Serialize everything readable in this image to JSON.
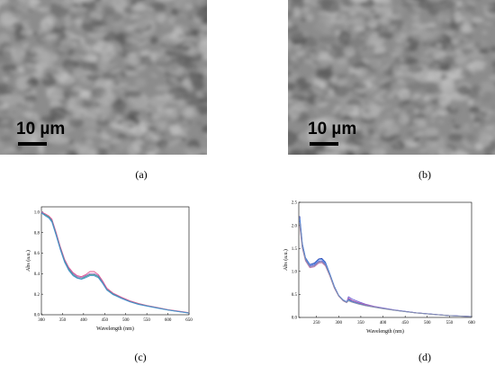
{
  "panels": {
    "a": {
      "caption": "(a)",
      "scale_bar": "10 µm"
    },
    "b": {
      "caption": "(b)",
      "scale_bar": "10 µm"
    },
    "c": {
      "caption": "(c)"
    },
    "d": {
      "caption": "(d)"
    }
  },
  "chart_data": [
    {
      "type": "line",
      "panel": "c",
      "xlabel": "Wavelength (nm)",
      "ylabel": "Abs (a.u.)",
      "xlim": [
        300,
        650
      ],
      "ylim": [
        0.0,
        1.05
      ],
      "xticks": [
        300,
        350,
        400,
        450,
        500,
        550,
        600,
        650
      ],
      "yticks": [
        0.0,
        0.2,
        0.4,
        0.6,
        0.8,
        1.0
      ],
      "xtick_labels": [
        "300",
        "350",
        "400",
        "450",
        "500",
        "550",
        "600",
        "650"
      ],
      "ytick_labels": [
        "0.0",
        "0.2",
        "0.4",
        "0.6",
        "0.8",
        "1.0"
      ],
      "x": [
        300,
        310,
        318,
        325,
        335,
        345,
        355,
        365,
        375,
        385,
        395,
        405,
        415,
        425,
        435,
        445,
        455,
        470,
        490,
        510,
        530,
        550,
        575,
        600,
        625,
        650
      ],
      "series": [
        {
          "color": "#e0508c",
          "values": [
            1.0,
            0.98,
            0.96,
            0.93,
            0.8,
            0.66,
            0.54,
            0.46,
            0.41,
            0.38,
            0.37,
            0.39,
            0.42,
            0.42,
            0.39,
            0.33,
            0.26,
            0.21,
            0.17,
            0.135,
            0.11,
            0.09,
            0.07,
            0.05,
            0.035,
            0.02
          ]
        },
        {
          "color": "#9a6fc4",
          "values": [
            1.0,
            0.97,
            0.95,
            0.92,
            0.79,
            0.65,
            0.53,
            0.45,
            0.4,
            0.37,
            0.36,
            0.38,
            0.4,
            0.4,
            0.38,
            0.32,
            0.25,
            0.205,
            0.165,
            0.13,
            0.105,
            0.088,
            0.068,
            0.048,
            0.033,
            0.018
          ]
        },
        {
          "color": "#3aa58a",
          "values": [
            0.99,
            0.97,
            0.95,
            0.91,
            0.78,
            0.64,
            0.52,
            0.44,
            0.39,
            0.36,
            0.35,
            0.37,
            0.39,
            0.39,
            0.37,
            0.31,
            0.245,
            0.2,
            0.16,
            0.128,
            0.103,
            0.086,
            0.066,
            0.046,
            0.031,
            0.017
          ]
        },
        {
          "color": "#4a8fd1",
          "values": [
            0.99,
            0.96,
            0.94,
            0.9,
            0.77,
            0.63,
            0.51,
            0.43,
            0.38,
            0.355,
            0.345,
            0.36,
            0.38,
            0.38,
            0.36,
            0.305,
            0.24,
            0.195,
            0.158,
            0.125,
            0.1,
            0.084,
            0.064,
            0.045,
            0.03,
            0.016
          ]
        }
      ]
    },
    {
      "type": "line",
      "panel": "d",
      "xlabel": "Wavelength (nm)",
      "ylabel": "Abs (a.u.)",
      "xlim": [
        210,
        600
      ],
      "ylim": [
        0.0,
        2.5
      ],
      "xticks": [
        250,
        300,
        350,
        400,
        450,
        500,
        550,
        600
      ],
      "yticks": [
        0.0,
        0.5,
        1.0,
        1.5,
        2.0,
        2.5
      ],
      "xtick_labels": [
        "250",
        "300",
        "350",
        "400",
        "450",
        "500",
        "550",
        "600"
      ],
      "ytick_labels": [
        "0.0",
        "0.5",
        "1.0",
        "1.5",
        "2.0",
        "2.5"
      ],
      "x": [
        212,
        218,
        225,
        235,
        245,
        255,
        262,
        270,
        280,
        290,
        300,
        310,
        318,
        322,
        330,
        345,
        360,
        380,
        400,
        425,
        450,
        475,
        500,
        525,
        550,
        575,
        600
      ],
      "series": [
        {
          "color": "#2a3fb5",
          "values": [
            2.2,
            1.6,
            1.3,
            1.15,
            1.18,
            1.27,
            1.28,
            1.2,
            0.95,
            0.68,
            0.48,
            0.38,
            0.34,
            0.4,
            0.36,
            0.31,
            0.27,
            0.23,
            0.2,
            0.16,
            0.13,
            0.1,
            0.08,
            0.06,
            0.04,
            0.03,
            0.02
          ]
        },
        {
          "color": "#6b5cd6",
          "values": [
            2.1,
            1.55,
            1.27,
            1.12,
            1.14,
            1.22,
            1.23,
            1.16,
            0.92,
            0.66,
            0.47,
            0.37,
            0.33,
            0.45,
            0.4,
            0.34,
            0.29,
            0.24,
            0.205,
            0.165,
            0.132,
            0.102,
            0.081,
            0.06,
            0.041,
            0.03,
            0.02
          ]
        },
        {
          "color": "#c26db0",
          "values": [
            2.0,
            1.5,
            1.23,
            1.08,
            1.1,
            1.18,
            1.19,
            1.12,
            0.9,
            0.64,
            0.46,
            0.36,
            0.32,
            0.42,
            0.37,
            0.32,
            0.28,
            0.235,
            0.2,
            0.16,
            0.128,
            0.1,
            0.079,
            0.058,
            0.04,
            0.029,
            0.019
          ]
        },
        {
          "color": "#4e8fe0",
          "values": [
            2.15,
            1.58,
            1.29,
            1.14,
            1.16,
            1.25,
            1.26,
            1.18,
            0.94,
            0.67,
            0.475,
            0.375,
            0.335,
            0.38,
            0.34,
            0.3,
            0.26,
            0.225,
            0.195,
            0.158,
            0.127,
            0.098,
            0.078,
            0.058,
            0.039,
            0.029,
            0.019
          ]
        },
        {
          "color": "#8a90a8",
          "values": [
            2.05,
            1.52,
            1.25,
            1.1,
            1.12,
            1.2,
            1.21,
            1.14,
            0.91,
            0.65,
            0.465,
            0.365,
            0.325,
            0.36,
            0.33,
            0.29,
            0.255,
            0.22,
            0.19,
            0.155,
            0.125,
            0.097,
            0.077,
            0.057,
            0.039,
            0.028,
            0.018
          ]
        }
      ]
    }
  ]
}
